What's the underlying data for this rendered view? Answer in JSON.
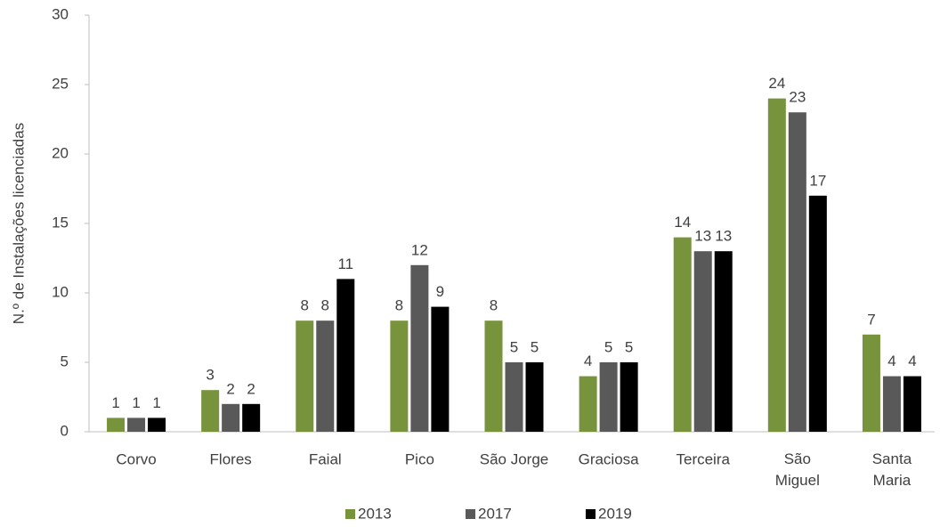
{
  "chart_data": {
    "type": "bar",
    "ylabel": "N.º de Instalações licenciadas",
    "categories": [
      "Corvo",
      "Flores",
      "Faial",
      "Pico",
      "São Jorge",
      "Graciosa",
      "Terceira",
      "São Miguel",
      "Santa Maria"
    ],
    "series": [
      {
        "name": "2013",
        "color": "#77933c",
        "values": [
          1,
          3,
          8,
          8,
          8,
          4,
          14,
          24,
          7
        ]
      },
      {
        "name": "2017",
        "color": "#595959",
        "values": [
          1,
          2,
          8,
          12,
          5,
          5,
          13,
          23,
          4
        ]
      },
      {
        "name": "2019",
        "color": "#000000",
        "values": [
          1,
          2,
          11,
          9,
          5,
          5,
          13,
          17,
          4
        ]
      }
    ],
    "ylim": [
      0,
      30
    ],
    "yticks": [
      0,
      5,
      10,
      15,
      20,
      25,
      30
    ],
    "grid": false,
    "legend": "bottom"
  }
}
